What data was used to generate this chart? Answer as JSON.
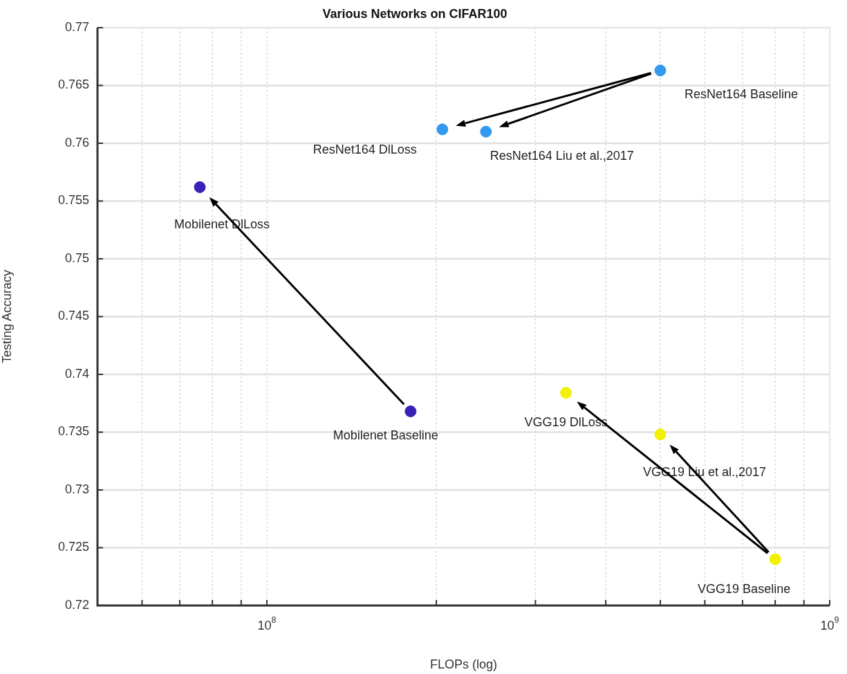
{
  "chart_data": {
    "type": "scatter",
    "title": "Various Networks on CIFAR100",
    "xlabel": "FLOPs (log)",
    "ylabel": "Testing Accuracy",
    "series": [
      {
        "color": "#3a1fb8",
        "x": [
          180000000,
          76000000
        ],
        "values": [
          0.7368,
          0.7562
        ]
      },
      {
        "color": "#3399ee",
        "x": [
          500000000,
          205000000,
          245000000
        ],
        "values": [
          0.7663,
          0.7612,
          0.761
        ]
      },
      {
        "color": "#f2f200",
        "x": [
          800000000,
          340000000,
          500000000
        ],
        "values": [
          0.724,
          0.7384,
          0.7348
        ]
      }
    ],
    "annotations": [
      {
        "text": "Mobilenet Baseline",
        "x": 180000000,
        "y": 0.7368
      },
      {
        "text": "Mobilenet DlLoss",
        "x": 76000000,
        "y": 0.7562
      },
      {
        "text": "ResNet164 Baseline",
        "x": 500000000,
        "y": 0.7663
      },
      {
        "text": "ResNet164 DlLoss",
        "x": 205000000,
        "y": 0.7612
      },
      {
        "text": "ResNet164 Liu et al.,2017",
        "x": 245000000,
        "y": 0.761
      },
      {
        "text": "VGG19 Baseline",
        "x": 800000000,
        "y": 0.724
      },
      {
        "text": "VGG19 DlLoss",
        "x": 340000000,
        "y": 0.7384
      },
      {
        "text": "VGG19 Liu et al.,2017",
        "x": 500000000,
        "y": 0.7348
      }
    ],
    "log": "x",
    "xlim": [
      50000000,
      1000000000
    ],
    "xticks": [
      {
        "value": 60000000,
        "label": null
      },
      {
        "value": 70000000,
        "label": null
      },
      {
        "value": 80000000,
        "label": null
      },
      {
        "value": 90000000,
        "label": null
      },
      {
        "value": 100000000,
        "label": "10$^{8}$"
      },
      {
        "value": 200000000,
        "label": null
      },
      {
        "value": 300000000,
        "label": null
      },
      {
        "value": 400000000,
        "label": null
      },
      {
        "value": 500000000,
        "label": null
      },
      {
        "value": 600000000,
        "label": null
      },
      {
        "value": 700000000,
        "label": null
      },
      {
        "value": 800000000,
        "label": null
      },
      {
        "value": 900000000,
        "label": null
      },
      {
        "value": 1000000000,
        "label": "10$^{9}$"
      }
    ],
    "ylim": [
      0.72,
      0.77
    ],
    "yticks": [
      0.72,
      0.725,
      0.73,
      0.735,
      0.74,
      0.745,
      0.75,
      0.755,
      0.76,
      0.765,
      0.77
    ],
    "grid": true,
    "marker": "circle",
    "legend": false
  }
}
